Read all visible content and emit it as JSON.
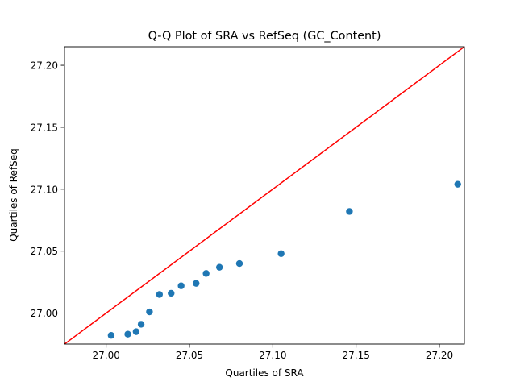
{
  "chart_data": {
    "type": "scatter",
    "title": "Q-Q Plot of SRA vs RefSeq (GC_Content)",
    "xlabel": "Quartiles of SRA",
    "ylabel": "Quartiles of RefSeq",
    "xlim": [
      26.975,
      27.215
    ],
    "ylim": [
      26.975,
      27.215
    ],
    "xticks": [
      27.0,
      27.05,
      27.1,
      27.15,
      27.2
    ],
    "xtick_labels": [
      "27.00",
      "27.05",
      "27.10",
      "27.15",
      "27.20"
    ],
    "yticks": [
      27.0,
      27.05,
      27.1,
      27.15,
      27.2
    ],
    "ytick_labels": [
      "27.00",
      "27.05",
      "27.10",
      "27.15",
      "27.20"
    ],
    "grid": false,
    "legend": "none",
    "points": [
      {
        "x": 27.003,
        "y": 26.982
      },
      {
        "x": 27.013,
        "y": 26.983
      },
      {
        "x": 27.018,
        "y": 26.985
      },
      {
        "x": 27.021,
        "y": 26.991
      },
      {
        "x": 27.026,
        "y": 27.001
      },
      {
        "x": 27.032,
        "y": 27.015
      },
      {
        "x": 27.039,
        "y": 27.016
      },
      {
        "x": 27.045,
        "y": 27.022
      },
      {
        "x": 27.054,
        "y": 27.024
      },
      {
        "x": 27.06,
        "y": 27.032
      },
      {
        "x": 27.068,
        "y": 27.037
      },
      {
        "x": 27.08,
        "y": 27.04
      },
      {
        "x": 27.105,
        "y": 27.048
      },
      {
        "x": 27.146,
        "y": 27.082
      },
      {
        "x": 27.211,
        "y": 27.104
      }
    ],
    "reference_line": {
      "slope": 1,
      "intercept": 0
    },
    "colors": {
      "points": "#1f77b4",
      "reference_line": "#ff0000",
      "axes": "#000000"
    }
  }
}
